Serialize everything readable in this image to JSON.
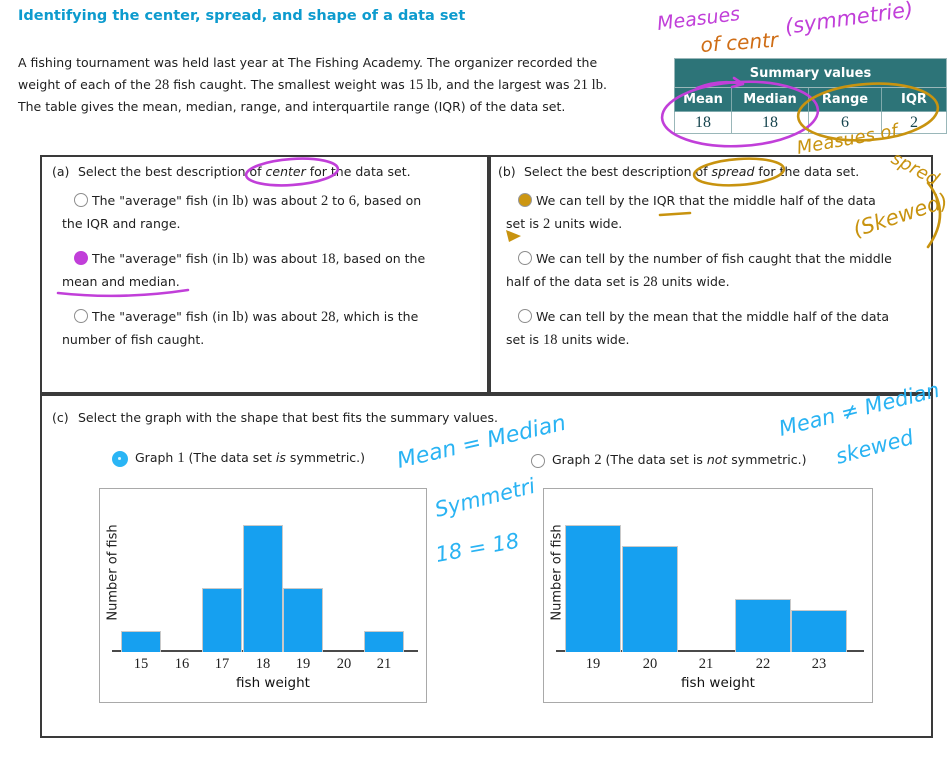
{
  "title": "Identifying the center, spread, and shape of a data set",
  "intro": {
    "lines": [
      [
        {
          "t": "A fishing tournament was held last year at The Fishing Academy. The organizer recorded the"
        }
      ],
      [
        {
          "t": "weight of each of the "
        },
        {
          "t": "28",
          "m": true
        },
        {
          "t": " fish caught. The smallest weight was "
        },
        {
          "t": "15 lb",
          "m": true
        },
        {
          "t": ", and the largest was "
        },
        {
          "t": "21 lb",
          "m": true
        },
        {
          "t": "."
        }
      ],
      [
        {
          "t": "The table gives the mean, median, range, and interquartile range (IQR) of the data set."
        }
      ]
    ]
  },
  "summary_table": {
    "title": "Summary values",
    "headers": [
      "Mean",
      "Median",
      "Range",
      "IQR"
    ],
    "values": [
      "18",
      "18",
      "6",
      "2"
    ]
  },
  "section_a": {
    "label": "(a)",
    "question": [
      {
        "t": "Select the best description of "
      },
      {
        "t": "center",
        "i": true
      },
      {
        "t": " for the data set."
      }
    ],
    "options": [
      {
        "selected": false,
        "text": [
          {
            "t": "The \"average\" fish (in "
          },
          {
            "t": "lb",
            "m": true
          },
          {
            "t": ") was about "
          },
          {
            "t": "2",
            "m": true
          },
          {
            "t": " to "
          },
          {
            "t": "6",
            "m": true
          },
          {
            "t": ", based on"
          },
          {
            "br": true
          },
          {
            "t": "the IQR and range."
          }
        ]
      },
      {
        "selected": true,
        "text": [
          {
            "t": "The \"average\" fish (in "
          },
          {
            "t": "lb",
            "m": true
          },
          {
            "t": ") was about "
          },
          {
            "t": "18",
            "m": true
          },
          {
            "t": ", based on the"
          },
          {
            "br": true
          },
          {
            "t": "mean and median."
          }
        ]
      },
      {
        "selected": false,
        "text": [
          {
            "t": "The \"average\" fish (in "
          },
          {
            "t": "lb",
            "m": true
          },
          {
            "t": ") was about "
          },
          {
            "t": "28",
            "m": true
          },
          {
            "t": ", which is the"
          },
          {
            "br": true
          },
          {
            "t": "number of fish caught."
          }
        ]
      }
    ]
  },
  "section_b": {
    "label": "(b)",
    "question": [
      {
        "t": "Select the best description of "
      },
      {
        "t": "spread",
        "i": true
      },
      {
        "t": " for the data set."
      }
    ],
    "options": [
      {
        "selected": true,
        "text": [
          {
            "t": "We can tell by the IQR that the middle half of the data"
          },
          {
            "br": true
          },
          {
            "t": "set is "
          },
          {
            "t": "2",
            "m": true
          },
          {
            "t": " units wide."
          }
        ]
      },
      {
        "selected": false,
        "text": [
          {
            "t": "We can tell by the number of fish caught that the middle"
          },
          {
            "br": true
          },
          {
            "t": "half of the data set is "
          },
          {
            "t": "28",
            "m": true
          },
          {
            "t": " units wide."
          }
        ]
      },
      {
        "selected": false,
        "text": [
          {
            "t": "We can tell by the mean that the middle half of the data"
          },
          {
            "br": true
          },
          {
            "t": "set is "
          },
          {
            "t": "18",
            "m": true
          },
          {
            "t": " units wide."
          }
        ]
      }
    ]
  },
  "section_c": {
    "label": "(c)",
    "question": [
      {
        "t": "Select the graph with the shape that best fits the summary values."
      }
    ],
    "graph1_label": [
      {
        "t": "Graph "
      },
      {
        "t": "1",
        "m": true
      },
      {
        "t": " (The data set "
      },
      {
        "t": "is",
        "i": true
      },
      {
        "t": " symmetric.)"
      }
    ],
    "graph2_label": [
      {
        "t": "Graph "
      },
      {
        "t": "2",
        "m": true
      },
      {
        "t": " (The data set is "
      },
      {
        "t": "not",
        "i": true
      },
      {
        "t": " symmetric.)"
      }
    ],
    "graph1_selected": true,
    "graph2_selected": false
  },
  "chart_data": [
    {
      "type": "bar",
      "title": "Graph 1",
      "note": "symmetric",
      "xlabel": "fish weight",
      "ylabel": "Number of fish",
      "categories": [
        "15",
        "16",
        "17",
        "18",
        "19",
        "20",
        "21"
      ],
      "values": [
        2,
        0,
        6,
        12,
        6,
        0,
        2
      ],
      "ylim": [
        0,
        14
      ],
      "grid": false
    },
    {
      "type": "bar",
      "title": "Graph 2",
      "note": "not symmetric",
      "xlabel": "fish weight",
      "ylabel": "Number of fish",
      "categories": [
        "19",
        "20",
        "21",
        "22",
        "23"
      ],
      "values": [
        12,
        10,
        0,
        5,
        4
      ],
      "ylim": [
        0,
        14
      ],
      "grid": false
    }
  ],
  "annotations": {
    "measues": "Measues",
    "of_center": "of centr",
    "symmetrie": "(symmetrie)",
    "measues_of": "Measues of",
    "spred": "spred",
    "skewed_paren": "(Skewed)",
    "mean_eq": "Mean = Median",
    "symmetri": "Symmetri",
    "eighteen_eq": "18 = 18",
    "mean_neq": "Mean ≠ Median",
    "skewed": "skewed"
  },
  "colors": {
    "title_accent": "#0d9bce",
    "table_teal": "#2d7478",
    "table_value_text": "#17454f",
    "bar_blue": "#16a0f0",
    "pen_purple": "#c13fd9",
    "pen_gold": "#c8930f",
    "pen_orange": "#cf6d15",
    "pen_cyan": "#29b3f3"
  }
}
